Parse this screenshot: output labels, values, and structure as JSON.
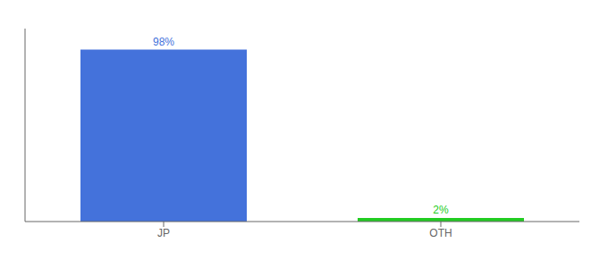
{
  "chart_data": {
    "type": "bar",
    "categories": [
      "JP",
      "OTH"
    ],
    "values": [
      98,
      2
    ],
    "value_labels": [
      "98%",
      "2%"
    ],
    "data_labels": true,
    "colors": [
      "#4472db",
      "#22cc22"
    ],
    "ylim": [
      0,
      110
    ],
    "tick_labels": "x",
    "grid": false
  }
}
